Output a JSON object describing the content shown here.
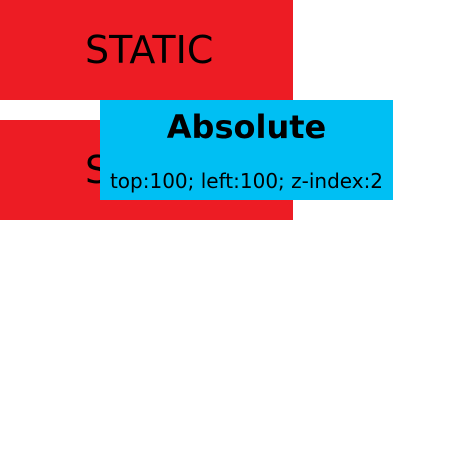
{
  "boxes": {
    "static_1": {
      "label": "STATIC",
      "color": "#ED1C24"
    },
    "static_2": {
      "label": "STATIC",
      "color": "#ED1C24"
    },
    "absolute": {
      "title": "Absolute",
      "caption": "top:100; left:100; z-index:2",
      "color": "#00BFF3"
    }
  }
}
